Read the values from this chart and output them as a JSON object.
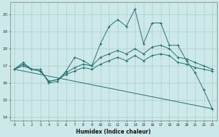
{
  "xlabel": "Humidex (Indice chaleur)",
  "bg_color": "#cce8e8",
  "grid_color": "#aacccc",
  "line_color": "#1a6e6a",
  "xlim": [
    -0.5,
    23.5
  ],
  "ylim": [
    13.8,
    20.7
  ],
  "yticks": [
    14,
    15,
    16,
    17,
    18,
    19,
    20
  ],
  "xticks": [
    0,
    1,
    2,
    3,
    4,
    5,
    6,
    7,
    8,
    9,
    10,
    11,
    12,
    13,
    14,
    15,
    16,
    17,
    18,
    19,
    20,
    21,
    22,
    23
  ],
  "line1_x": [
    0,
    1,
    2,
    3,
    4,
    5,
    6,
    7,
    8,
    9,
    10,
    11,
    12,
    13,
    14,
    15,
    16,
    17,
    18,
    19,
    20,
    21,
    22,
    23
  ],
  "line1_y": [
    16.8,
    17.2,
    16.8,
    16.8,
    16.0,
    16.1,
    16.7,
    17.5,
    17.3,
    17.0,
    18.3,
    19.3,
    19.7,
    19.3,
    20.3,
    18.3,
    19.5,
    19.5,
    18.2,
    18.2,
    17.3,
    16.6,
    15.6,
    14.5
  ],
  "line2_x": [
    0,
    1,
    2,
    3,
    4,
    5,
    6,
    7,
    8,
    9,
    10,
    11,
    12,
    13,
    14,
    15,
    16,
    17,
    18,
    19,
    20,
    21,
    22,
    23
  ],
  "line2_y": [
    16.8,
    17.1,
    16.8,
    16.7,
    16.1,
    16.2,
    16.6,
    16.9,
    17.1,
    17.0,
    17.5,
    17.7,
    17.9,
    17.7,
    18.0,
    17.7,
    18.1,
    18.2,
    18.0,
    17.5,
    17.4,
    17.2,
    17.0,
    16.8
  ],
  "line3_x": [
    0,
    1,
    2,
    3,
    4,
    5,
    6,
    7,
    8,
    9,
    10,
    11,
    12,
    13,
    14,
    15,
    16,
    17,
    18,
    19,
    20,
    21,
    22,
    23
  ],
  "line3_y": [
    16.8,
    17.0,
    16.8,
    16.7,
    16.1,
    16.2,
    16.5,
    16.7,
    16.9,
    16.8,
    17.1,
    17.3,
    17.5,
    17.3,
    17.6,
    17.3,
    17.6,
    17.7,
    17.6,
    17.2,
    17.1,
    16.9,
    16.8,
    16.7
  ],
  "line4_x": [
    0,
    23
  ],
  "line4_y": [
    16.8,
    14.5
  ]
}
